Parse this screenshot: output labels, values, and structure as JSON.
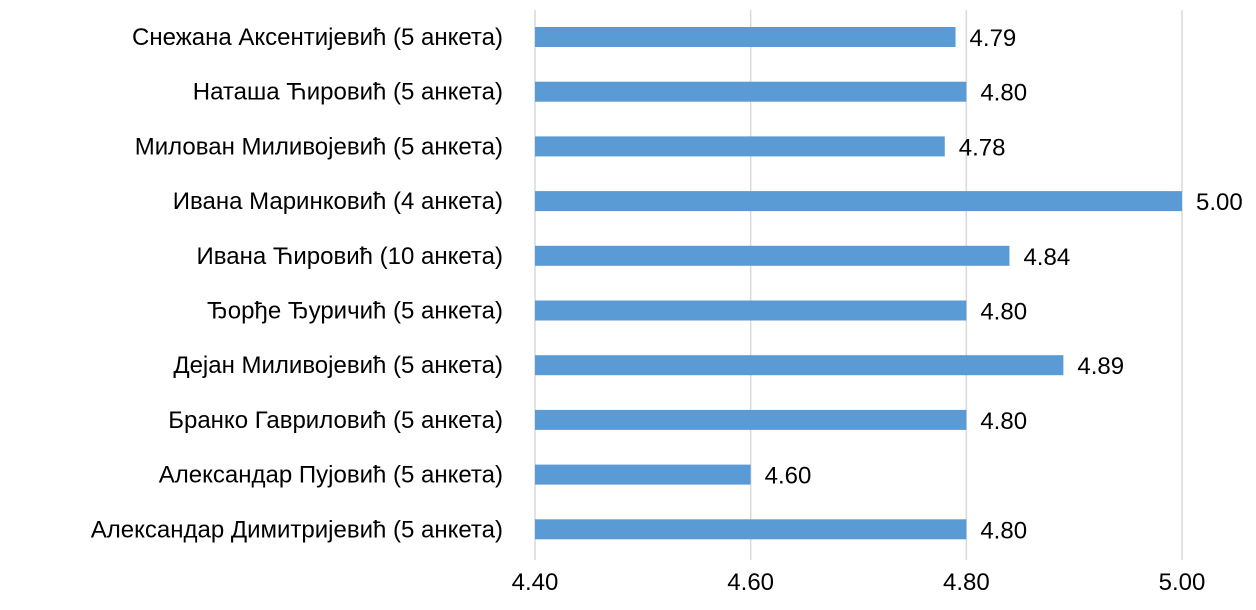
{
  "chart_data": {
    "type": "bar",
    "orientation": "horizontal",
    "title": "",
    "xlabel": "",
    "ylabel": "",
    "xlim": [
      4.4,
      5.0
    ],
    "x_ticks": [
      "4.40",
      "4.60",
      "4.80",
      "5.00"
    ],
    "x_tick_values": [
      4.4,
      4.6,
      4.8,
      5.0
    ],
    "grid": "vertical",
    "bar_color": "#5b9bd5",
    "grid_color": "#d9d9d9",
    "categories": [
      "Снежана Аксентијевић (5 анкета)",
      "Наташа Ћировић (5 анкета)",
      "Милован Миливојевић (5 анкета)",
      "Ивана Маринковић (4 анкета)",
      "Ивана Ћировић (10 анкета)",
      "Ђорђе Ђуричић (5 анкета)",
      "Дејан Миливојевић (5 анкета)",
      "Бранко Гавриловић (5 анкета)",
      "Александар Пујовић (5 анкета)",
      "Александар Димитријевић (5 анкета)"
    ],
    "values": [
      4.79,
      4.8,
      4.78,
      5.0,
      4.84,
      4.8,
      4.89,
      4.8,
      4.6,
      4.8
    ],
    "value_labels": [
      "4.79",
      "4.80",
      "4.78",
      "5.00",
      "4.84",
      "4.80",
      "4.89",
      "4.80",
      "4.60",
      "4.80"
    ]
  }
}
